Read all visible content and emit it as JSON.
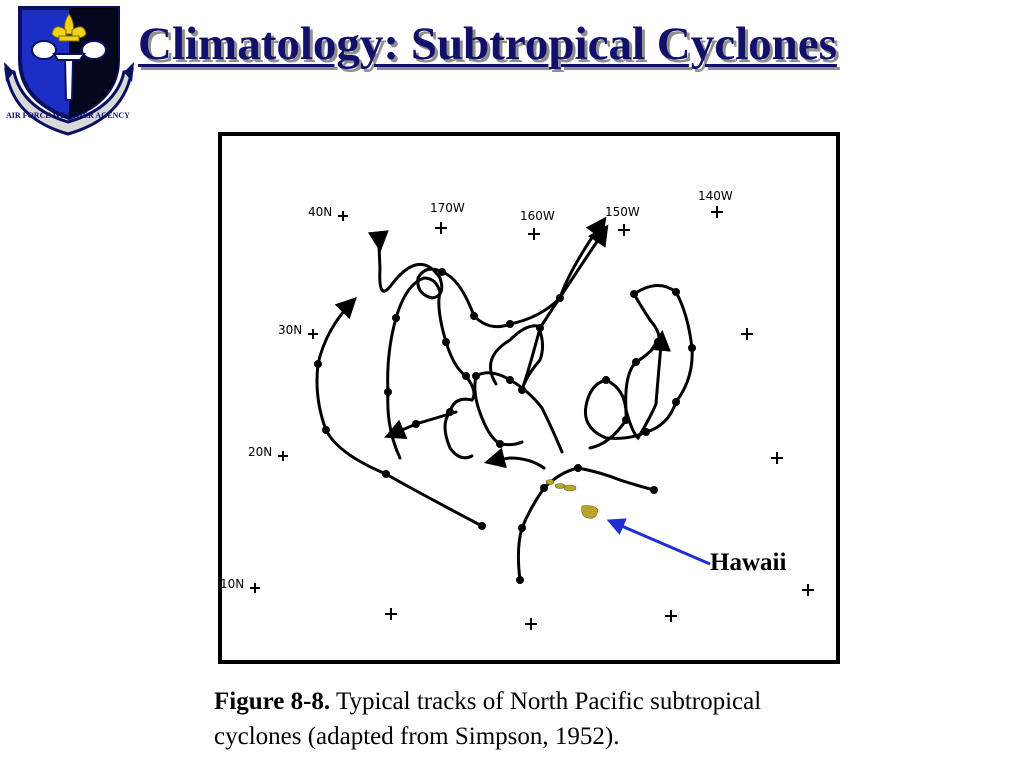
{
  "slide": {
    "title": "Climatology: Subtropical Cyclones",
    "title_color": "#12106b"
  },
  "emblem": {
    "text": "AIR FORCE WEATHER AGENCY",
    "colors": {
      "field": "#1c2fc4",
      "border": "#0a1060",
      "fleur": "#f2d21a"
    }
  },
  "map": {
    "longitude_labels": [
      "170W",
      "160W",
      "150W",
      "140W"
    ],
    "latitude_labels": [
      "40N",
      "30N",
      "20N",
      "10N"
    ],
    "callout_label": "Hawaii",
    "callout_color": "#1f2fd6",
    "island_color": "#b8a52a"
  },
  "caption": {
    "figure_label": "Figure 8-8.",
    "text": " Typical tracks of North Pacific subtropical cyclones (adapted from Simpson, 1952)."
  }
}
